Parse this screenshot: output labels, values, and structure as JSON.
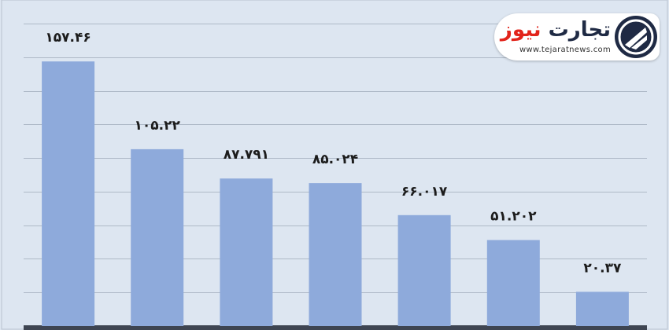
{
  "chart_data": {
    "type": "bar",
    "categories": [
      "",
      "",
      "",
      "",
      "",
      "",
      ""
    ],
    "values": [
      157.46,
      105.22,
      87.791,
      85.024,
      66.017,
      51.202,
      20.37
    ],
    "data_labels": [
      "۱۵۷.۴۶",
      "۱۰۵.۲۲",
      "۸۷.۷۹۱",
      "۸۵.۰۲۴",
      "۶۶.۰۱۷",
      "۵۱.۲۰۲",
      "۲۰.۳۷"
    ],
    "title": "",
    "xlabel": "",
    "ylabel": "",
    "ylim": [
      0,
      180
    ],
    "grid": true,
    "bar_color": "#8eaadb",
    "gridline_color": "#aeb9c7",
    "baseline_color": "#3e4552",
    "background_color": "#dde6f1"
  },
  "logo": {
    "name_part1": "تجارت",
    "name_part2": "نیوز",
    "url": "www.tejaratnews.com",
    "icon": "tejarat-news-logo-icon",
    "brand_color": "#1f2a44",
    "accent_color": "#e2231a"
  }
}
